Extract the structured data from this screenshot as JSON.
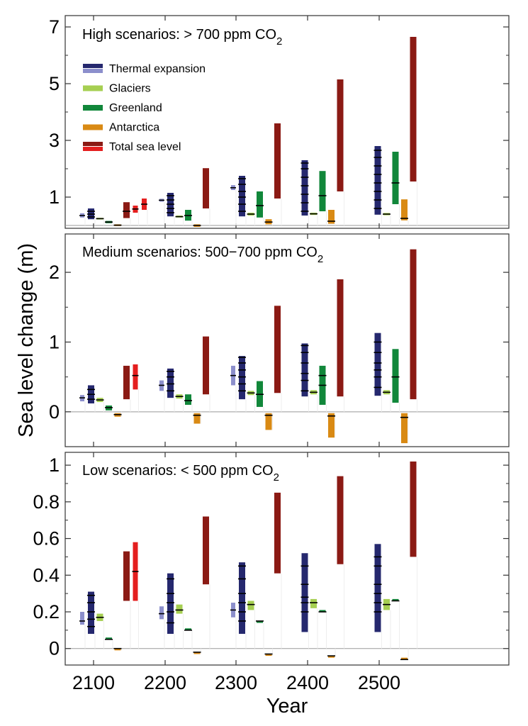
{
  "figure": {
    "ylabel": "Sea level change (m)",
    "xlabel": "Year",
    "x_ticks": [
      "2100",
      "2200",
      "2300",
      "2400",
      "2500"
    ]
  },
  "legend": [
    {
      "label": "Thermal expansion",
      "colors": [
        "#25286e",
        "#8c8fcc"
      ]
    },
    {
      "label": "Glaciers",
      "colors": [
        "#a6cf52"
      ]
    },
    {
      "label": "Greenland",
      "colors": [
        "#11873a"
      ]
    },
    {
      "label": "Antarctica",
      "colors": [
        "#d98a14"
      ]
    },
    {
      "label": "Total sea level",
      "colors": [
        "#8b1a14",
        "#e41f1f"
      ]
    }
  ],
  "chart_data": [
    {
      "type": "bar",
      "title_main": "High scenarios: > 700 ppm CO",
      "title_sub": "2",
      "ylim": [
        -0.1,
        7.4
      ],
      "y_ticks": [
        1,
        3,
        5,
        7
      ],
      "zero_line": true,
      "bars": [
        {
          "year": "2100",
          "component": "Thermal expansion (light)",
          "low": 0.28,
          "high": 0.43,
          "marks": [
            0.35
          ]
        },
        {
          "year": "2100",
          "component": "Thermal expansion",
          "low": 0.22,
          "high": 0.6,
          "marks": [
            0.3,
            0.4,
            0.5
          ]
        },
        {
          "year": "2100",
          "component": "Glaciers",
          "low": 0.21,
          "high": 0.27,
          "marks": [
            0.24
          ]
        },
        {
          "year": "2100",
          "component": "Greenland",
          "low": 0.08,
          "high": 0.16,
          "marks": [
            0.12
          ]
        },
        {
          "year": "2100",
          "component": "Antarctica",
          "low": -0.02,
          "high": 0.04,
          "marks": [
            0.01
          ]
        },
        {
          "year": "2100",
          "component": "Total sea level",
          "low": 0.26,
          "high": 0.82,
          "marks": [
            0.5
          ]
        },
        {
          "year": "2100",
          "component": "Total sea level (bright)",
          "low": 0.45,
          "high": 0.7,
          "marks": [
            0.58
          ]
        },
        {
          "year": "2100",
          "component": "Total sea level (bright)",
          "low": 0.55,
          "high": 0.95,
          "marks": [
            0.75
          ]
        },
        {
          "year": "2200",
          "component": "Thermal expansion (light)",
          "low": 0.84,
          "high": 0.94,
          "marks": [
            0.89
          ]
        },
        {
          "year": "2200",
          "component": "Thermal expansion",
          "low": 0.32,
          "high": 1.15,
          "marks": [
            0.45,
            0.6,
            0.75,
            0.9,
            1.05
          ]
        },
        {
          "year": "2200",
          "component": "Glaciers",
          "low": 0.28,
          "high": 0.35,
          "marks": [
            0.31
          ]
        },
        {
          "year": "2200",
          "component": "Greenland",
          "low": 0.17,
          "high": 0.55,
          "marks": [
            0.35
          ]
        },
        {
          "year": "2200",
          "component": "Antarctica",
          "low": -0.05,
          "high": 0.04,
          "marks": [
            0.0
          ]
        },
        {
          "year": "2200",
          "component": "Total sea level",
          "low": 0.6,
          "high": 2.02,
          "marks": []
        },
        {
          "year": "2300",
          "component": "Thermal expansion (light)",
          "low": 1.25,
          "high": 1.42,
          "marks": [
            1.33
          ]
        },
        {
          "year": "2300",
          "component": "Thermal expansion",
          "low": 0.32,
          "high": 1.75,
          "marks": [
            0.5,
            0.75,
            1.0,
            1.2,
            1.45,
            1.65
          ]
        },
        {
          "year": "2300",
          "component": "Glaciers",
          "low": 0.35,
          "high": 0.45,
          "marks": [
            0.4
          ]
        },
        {
          "year": "2300",
          "component": "Greenland",
          "low": 0.28,
          "high": 1.2,
          "marks": [
            0.7
          ]
        },
        {
          "year": "2300",
          "component": "Antarctica",
          "low": 0.04,
          "high": 0.22,
          "marks": [
            0.12
          ]
        },
        {
          "year": "2300",
          "component": "Total sea level",
          "low": 0.95,
          "high": 3.6,
          "marks": []
        },
        {
          "year": "2400",
          "component": "Thermal expansion",
          "low": 0.35,
          "high": 2.3,
          "marks": [
            0.5,
            0.8,
            1.1,
            1.4,
            1.7,
            2.0,
            2.2
          ]
        },
        {
          "year": "2400",
          "component": "Glaciers",
          "low": 0.37,
          "high": 0.45,
          "marks": [
            0.41
          ]
        },
        {
          "year": "2400",
          "component": "Greenland",
          "low": 0.5,
          "high": 1.92,
          "marks": [
            1.05
          ]
        },
        {
          "year": "2400",
          "component": "Antarctica",
          "low": 0.06,
          "high": 0.55,
          "marks": [
            0.15
          ]
        },
        {
          "year": "2400",
          "component": "Total sea level",
          "low": 1.2,
          "high": 5.15,
          "marks": []
        },
        {
          "year": "2500",
          "component": "Thermal expansion",
          "low": 0.38,
          "high": 2.8,
          "marks": [
            0.6,
            0.9,
            1.2,
            1.5,
            1.8,
            2.1,
            2.4,
            2.65
          ]
        },
        {
          "year": "2500",
          "component": "Glaciers",
          "low": 0.36,
          "high": 0.44,
          "marks": [
            0.4
          ]
        },
        {
          "year": "2500",
          "component": "Greenland",
          "low": 0.75,
          "high": 2.6,
          "marks": [
            1.5
          ]
        },
        {
          "year": "2500",
          "component": "Antarctica",
          "low": 0.18,
          "high": 0.92,
          "marks": [
            0.25
          ]
        },
        {
          "year": "2500",
          "component": "Total sea level",
          "low": 1.55,
          "high": 6.65,
          "marks": []
        }
      ]
    },
    {
      "type": "bar",
      "title_main": "Medium scenarios: 500−700 ppm CO",
      "title_sub": "2",
      "ylim": [
        -0.5,
        2.55
      ],
      "y_ticks": [
        0,
        1,
        2
      ],
      "zero_line": true,
      "bars": [
        {
          "year": "2100",
          "component": "Thermal expansion (light)",
          "low": 0.15,
          "high": 0.24,
          "marks": [
            0.2
          ]
        },
        {
          "year": "2100",
          "component": "Thermal expansion",
          "low": 0.12,
          "high": 0.38,
          "marks": [
            0.18,
            0.25,
            0.32
          ]
        },
        {
          "year": "2100",
          "component": "Glaciers",
          "low": 0.14,
          "high": 0.2,
          "marks": [
            0.17
          ]
        },
        {
          "year": "2100",
          "component": "Greenland",
          "low": 0.02,
          "high": 0.09,
          "marks": [
            0.06
          ]
        },
        {
          "year": "2100",
          "component": "Antarctica",
          "low": -0.07,
          "high": -0.02,
          "marks": [
            -0.04
          ]
        },
        {
          "year": "2100",
          "component": "Total sea level",
          "low": 0.18,
          "high": 0.66,
          "marks": []
        },
        {
          "year": "2100",
          "component": "Total sea level (bright)",
          "low": 0.32,
          "high": 0.68,
          "marks": [
            0.52
          ]
        },
        {
          "year": "2200",
          "component": "Thermal expansion (light)",
          "low": 0.3,
          "high": 0.45,
          "marks": [
            0.38
          ]
        },
        {
          "year": "2200",
          "component": "Thermal expansion",
          "low": 0.2,
          "high": 0.62,
          "marks": [
            0.3,
            0.4,
            0.5,
            0.58
          ]
        },
        {
          "year": "2200",
          "component": "Glaciers",
          "low": 0.19,
          "high": 0.25,
          "marks": [
            0.22
          ]
        },
        {
          "year": "2200",
          "component": "Greenland",
          "low": 0.1,
          "high": 0.25,
          "marks": [
            0.16
          ]
        },
        {
          "year": "2200",
          "component": "Antarctica",
          "low": -0.17,
          "high": -0.02,
          "marks": [
            -0.05
          ]
        },
        {
          "year": "2200",
          "component": "Total sea level",
          "low": 0.25,
          "high": 1.08,
          "marks": []
        },
        {
          "year": "2300",
          "component": "Thermal expansion (light)",
          "low": 0.38,
          "high": 0.66,
          "marks": [
            0.52
          ]
        },
        {
          "year": "2300",
          "component": "Thermal expansion",
          "low": 0.18,
          "high": 0.8,
          "marks": [
            0.3,
            0.4,
            0.5,
            0.6,
            0.7,
            0.78
          ]
        },
        {
          "year": "2300",
          "component": "Glaciers",
          "low": 0.24,
          "high": 0.3,
          "marks": [
            0.27
          ]
        },
        {
          "year": "2300",
          "component": "Greenland",
          "low": 0.07,
          "high": 0.44,
          "marks": [
            0.25
          ]
        },
        {
          "year": "2300",
          "component": "Antarctica",
          "low": -0.26,
          "high": -0.02,
          "marks": [
            -0.05
          ]
        },
        {
          "year": "2300",
          "component": "Total sea level",
          "low": 0.27,
          "high": 1.52,
          "marks": []
        },
        {
          "year": "2400",
          "component": "Thermal expansion",
          "low": 0.22,
          "high": 0.98,
          "marks": [
            0.3,
            0.45,
            0.55,
            0.7,
            0.85,
            0.95
          ]
        },
        {
          "year": "2400",
          "component": "Glaciers",
          "low": 0.25,
          "high": 0.31,
          "marks": [
            0.28
          ]
        },
        {
          "year": "2400",
          "component": "Greenland",
          "low": 0.1,
          "high": 0.66,
          "marks": [
            0.38,
            0.52
          ]
        },
        {
          "year": "2400",
          "component": "Antarctica",
          "low": -0.37,
          "high": -0.02,
          "marks": [
            -0.06
          ]
        },
        {
          "year": "2400",
          "component": "Total sea level",
          "low": 0.22,
          "high": 1.9,
          "marks": []
        },
        {
          "year": "2500",
          "component": "Thermal expansion",
          "low": 0.23,
          "high": 1.13,
          "marks": [
            0.35,
            0.5,
            0.6,
            0.7,
            0.85,
            1.0
          ]
        },
        {
          "year": "2500",
          "component": "Glaciers",
          "low": 0.25,
          "high": 0.31,
          "marks": [
            0.28
          ]
        },
        {
          "year": "2500",
          "component": "Greenland",
          "low": 0.13,
          "high": 0.9,
          "marks": [
            0.5
          ]
        },
        {
          "year": "2500",
          "component": "Antarctica",
          "low": -0.45,
          "high": -0.02,
          "marks": [
            -0.08
          ]
        },
        {
          "year": "2500",
          "component": "Total sea level",
          "low": 0.18,
          "high": 2.33,
          "marks": []
        }
      ]
    },
    {
      "type": "bar",
      "title_main": "Low scenarios: < 500 ppm CO",
      "title_sub": "2",
      "ylim": [
        -0.09,
        1.07
      ],
      "y_ticks": [
        0,
        0.2,
        0.4,
        0.6,
        0.8,
        1
      ],
      "zero_line": true,
      "bars": [
        {
          "year": "2100",
          "component": "Thermal expansion (light)",
          "low": 0.13,
          "high": 0.2,
          "marks": [
            0.15
          ]
        },
        {
          "year": "2100",
          "component": "Thermal expansion",
          "low": 0.08,
          "high": 0.31,
          "marks": [
            0.12,
            0.16,
            0.2,
            0.25,
            0.29
          ]
        },
        {
          "year": "2100",
          "component": "Glaciers",
          "low": 0.15,
          "high": 0.19,
          "marks": [
            0.17
          ]
        },
        {
          "year": "2100",
          "component": "Greenland",
          "low": 0.05,
          "high": 0.06,
          "marks": [
            0.05
          ]
        },
        {
          "year": "2100",
          "component": "Antarctica",
          "low": -0.01,
          "high": 0.0,
          "marks": [
            0.0
          ]
        },
        {
          "year": "2100",
          "component": "Total sea level",
          "low": 0.26,
          "high": 0.53,
          "marks": []
        },
        {
          "year": "2100",
          "component": "Total sea level (bright)",
          "low": 0.26,
          "high": 0.58,
          "marks": [
            0.42
          ]
        },
        {
          "year": "2200",
          "component": "Thermal expansion (light)",
          "low": 0.16,
          "high": 0.23,
          "marks": [
            0.19
          ]
        },
        {
          "year": "2200",
          "component": "Thermal expansion",
          "low": 0.08,
          "high": 0.41,
          "marks": [
            0.14,
            0.2,
            0.25,
            0.3,
            0.38
          ]
        },
        {
          "year": "2200",
          "component": "Glaciers",
          "low": 0.19,
          "high": 0.24,
          "marks": [
            0.21
          ]
        },
        {
          "year": "2200",
          "component": "Greenland",
          "low": 0.1,
          "high": 0.11,
          "marks": [
            0.1
          ]
        },
        {
          "year": "2200",
          "component": "Antarctica",
          "low": -0.03,
          "high": -0.02,
          "marks": [
            -0.02
          ]
        },
        {
          "year": "2200",
          "component": "Total sea level",
          "low": 0.35,
          "high": 0.72,
          "marks": []
        },
        {
          "year": "2300",
          "component": "Thermal expansion (light)",
          "low": 0.17,
          "high": 0.25,
          "marks": [
            0.21
          ]
        },
        {
          "year": "2300",
          "component": "Thermal expansion",
          "low": 0.08,
          "high": 0.47,
          "marks": [
            0.15,
            0.2,
            0.25,
            0.3,
            0.38,
            0.45
          ]
        },
        {
          "year": "2300",
          "component": "Glaciers",
          "low": 0.21,
          "high": 0.26,
          "marks": [
            0.24
          ]
        },
        {
          "year": "2300",
          "component": "Greenland",
          "low": 0.14,
          "high": 0.15,
          "marks": [
            0.15
          ]
        },
        {
          "year": "2300",
          "component": "Antarctica",
          "low": -0.04,
          "high": -0.03,
          "marks": [
            -0.03
          ]
        },
        {
          "year": "2300",
          "component": "Total sea level",
          "low": 0.41,
          "high": 0.85,
          "marks": []
        },
        {
          "year": "2400",
          "component": "Thermal expansion",
          "low": 0.09,
          "high": 0.52,
          "marks": [
            0.2,
            0.25,
            0.28,
            0.35,
            0.45
          ]
        },
        {
          "year": "2400",
          "component": "Glaciers",
          "low": 0.22,
          "high": 0.27,
          "marks": [
            0.25
          ]
        },
        {
          "year": "2400",
          "component": "Greenland",
          "low": 0.2,
          "high": 0.21,
          "marks": [
            0.2
          ]
        },
        {
          "year": "2400",
          "component": "Antarctica",
          "low": -0.05,
          "high": -0.04,
          "marks": [
            -0.04
          ]
        },
        {
          "year": "2400",
          "component": "Total sea level",
          "low": 0.46,
          "high": 0.94,
          "marks": []
        },
        {
          "year": "2500",
          "component": "Thermal expansion",
          "low": 0.09,
          "high": 0.57,
          "marks": [
            0.2,
            0.25,
            0.3,
            0.35,
            0.45,
            0.5
          ]
        },
        {
          "year": "2500",
          "component": "Glaciers",
          "low": 0.21,
          "high": 0.27,
          "marks": [
            0.24
          ]
        },
        {
          "year": "2500",
          "component": "Greenland",
          "low": 0.26,
          "high": 0.27,
          "marks": [
            0.26
          ]
        },
        {
          "year": "2500",
          "component": "Antarctica",
          "low": -0.06,
          "high": -0.05,
          "marks": [
            -0.06
          ]
        },
        {
          "year": "2500",
          "component": "Total sea level",
          "low": 0.5,
          "high": 1.02,
          "marks": []
        }
      ]
    }
  ]
}
